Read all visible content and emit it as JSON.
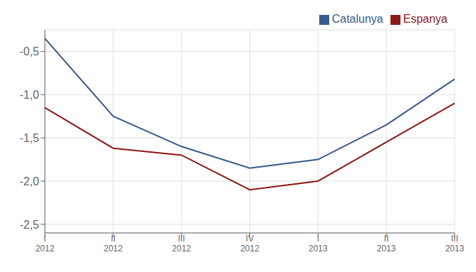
{
  "chart_data": {
    "type": "line",
    "categories": [
      "I\n2012",
      "II\n2012",
      "III\n2012",
      "IV\n2012",
      "I\n2013",
      "II\n2013",
      "III\n2013"
    ],
    "series": [
      {
        "name": "Catalunya",
        "color": "#3a5a8c",
        "values": [
          -0.35,
          -1.25,
          -1.6,
          -1.85,
          -1.75,
          -1.35,
          -0.82
        ]
      },
      {
        "name": "Espanya",
        "color": "#8b1a1a",
        "values": [
          -1.15,
          -1.62,
          -1.7,
          -2.1,
          -2.0,
          -1.55,
          -1.1
        ]
      }
    ],
    "ylim": [
      -2.6,
      -0.25
    ],
    "yticks": [
      {
        "value": -0.5,
        "label": "-0,5"
      },
      {
        "value": -1.0,
        "label": "-1,0"
      },
      {
        "value": -1.5,
        "label": "-1,5"
      },
      {
        "value": -2.0,
        "label": "-2,0"
      },
      {
        "value": -2.5,
        "label": "-2,5"
      }
    ],
    "grid": true,
    "legend": "upper right"
  }
}
